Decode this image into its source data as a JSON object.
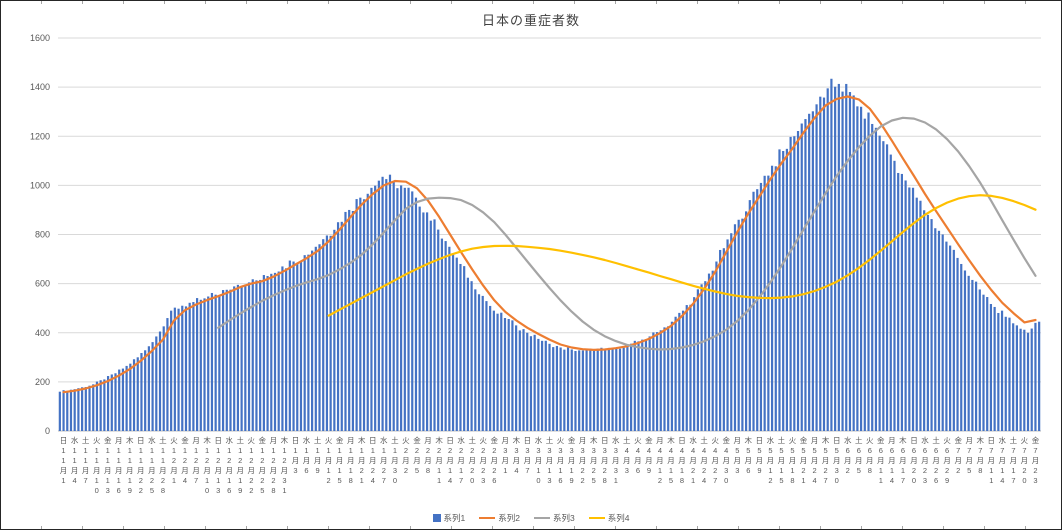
{
  "chart_data": {
    "type": "combo",
    "title": "日本の重症者数",
    "x_tick_interval_days": 3,
    "y_axis": {
      "min": 0,
      "max": 1600,
      "step": 200,
      "ticks": [
        0,
        200,
        400,
        600,
        800,
        1000,
        1200,
        1400,
        1600
      ]
    },
    "colors": {
      "grid": "#D9D9D9",
      "axis": "#BFBFBF",
      "text": "#595959",
      "title": "#404040"
    },
    "legend_position": "bottom",
    "x_labels": [
      "日11月1",
      "水11月4",
      "土11月7",
      "火11月10",
      "金11月13",
      "月11月16",
      "木11月19",
      "日11月22",
      "水11月25",
      "土11月28",
      "火12月1",
      "金12月4",
      "月12月7",
      "木12月10",
      "日12月13",
      "水12月16",
      "土12月19",
      "火12月22",
      "金12月25",
      "月12月28",
      "木12月31",
      "日1月3",
      "水1月6",
      "土1月9",
      "火1月12",
      "金1月15",
      "月1月18",
      "木1月21",
      "日1月24",
      "水1月27",
      "土1月30",
      "火2月2",
      "金2月5",
      "月2月8",
      "木2月11",
      "日2月14",
      "水2月17",
      "土2月20",
      "火2月23",
      "金2月26",
      "月3月1",
      "木3月4",
      "日3月7",
      "水3月10",
      "土3月13",
      "火3月16",
      "金3月19",
      "月3月22",
      "木3月25",
      "日3月28",
      "水3月31",
      "土4月3",
      "火4月6",
      "金4月9",
      "月4月12",
      "木4月15",
      "日4月18",
      "水4月21",
      "土4月24",
      "火4月27",
      "金4月30",
      "月5月3",
      "木5月6",
      "日5月9",
      "水5月12",
      "土5月15",
      "火5月18",
      "金5月21",
      "月5月24",
      "木5月27",
      "日5月30",
      "水6月2",
      "土6月5",
      "火6月8",
      "金6月11",
      "月6月14",
      "木6月17",
      "日6月20",
      "水6月23",
      "土6月26",
      "火6月29",
      "金7月2",
      "月7月5",
      "木7月8",
      "日7月11",
      "水7月14",
      "土7月17",
      "火7月20",
      "金7月23"
    ],
    "series": [
      {
        "name": "系列1",
        "type": "bar",
        "color": "#4472C4",
        "values": [
          160,
          168,
          178,
          190,
          210,
          235,
          265,
          300,
          345,
          405,
          490,
          510,
          525,
          540,
          555,
          575,
          595,
          605,
          615,
          640,
          670,
          690,
          716,
          750,
          796,
          850,
          900,
          950,
          990,
          1035,
          1015,
          990,
          950,
          890,
          820,
          750,
          680,
          610,
          550,
          490,
          460,
          430,
          400,
          375,
          355,
          340,
          332,
          328,
          330,
          335,
          340,
          350,
          365,
          385,
          410,
          445,
          490,
          545,
          610,
          690,
          780,
          860,
          940,
          1010,
          1080,
          1140,
          1200,
          1270,
          1330,
          1395,
          1413,
          1380,
          1320,
          1250,
          1180,
          1100,
          1020,
          950,
          880,
          815,
          755,
          680,
          615,
          555,
          505,
          465,
          430,
          400,
          445
        ]
      },
      {
        "name": "系列2",
        "type": "line",
        "color": "#ED7D31",
        "values": [
          158,
          164,
          173,
          186,
          203,
          225,
          252,
          286,
          326,
          372,
          450,
          492,
          515,
          533,
          549,
          566,
          586,
          600,
          610,
          628,
          652,
          678,
          703,
          733,
          772,
          820,
          872,
          922,
          965,
          1000,
          1018,
          1015,
          988,
          938,
          872,
          800,
          728,
          658,
          592,
          532,
          485,
          450,
          420,
          395,
          372,
          352,
          340,
          333,
          330,
          332,
          337,
          345,
          358,
          375,
          398,
          428,
          468,
          518,
          578,
          648,
          728,
          810,
          885,
          955,
          1025,
          1090,
          1150,
          1215,
          1275,
          1325,
          1352,
          1362,
          1350,
          1312,
          1252,
          1182,
          1110,
          1038,
          965,
          895,
          828,
          760,
          695,
          632,
          574,
          522,
          480,
          442,
          452
        ]
      },
      {
        "name": "系列3",
        "type": "line",
        "color": "#A5A5A5",
        "values": [
          null,
          null,
          null,
          null,
          null,
          null,
          null,
          null,
          null,
          null,
          null,
          null,
          null,
          null,
          420,
          450,
          478,
          505,
          530,
          552,
          572,
          590,
          605,
          618,
          635,
          658,
          685,
          718,
          760,
          808,
          858,
          905,
          932,
          946,
          950,
          948,
          940,
          920,
          890,
          850,
          800,
          745,
          690,
          635,
          582,
          532,
          486,
          446,
          412,
          386,
          366,
          351,
          341,
          335,
          332,
          334,
          340,
          350,
          365,
          386,
          412,
          448,
          492,
          545,
          605,
          672,
          745,
          820,
          895,
          968,
          1038,
          1100,
          1155,
          1202,
          1240,
          1264,
          1275,
          1272,
          1256,
          1228,
          1188,
          1138,
          1078,
          1010,
          936,
          858,
          780,
          704,
          632
        ]
      },
      {
        "name": "系列4",
        "type": "line",
        "color": "#FFC000",
        "values": [
          null,
          null,
          null,
          null,
          null,
          null,
          null,
          null,
          null,
          null,
          null,
          null,
          null,
          null,
          null,
          null,
          null,
          null,
          null,
          null,
          null,
          null,
          null,
          null,
          470,
          494,
          518,
          542,
          566,
          590,
          614,
          638,
          660,
          681,
          700,
          717,
          731,
          742,
          749,
          753,
          754,
          753,
          750,
          746,
          741,
          734,
          726,
          717,
          707,
          696,
          684,
          671,
          658,
          645,
          631,
          618,
          604,
          591,
          579,
          568,
          558,
          550,
          545,
          542,
          541,
          543,
          548,
          557,
          570,
          587,
          608,
          634,
          664,
          698,
          734,
          772,
          810,
          847,
          880,
          908,
          930,
          946,
          956,
          960,
          957,
          949,
          936,
          920,
          901
        ]
      }
    ]
  }
}
